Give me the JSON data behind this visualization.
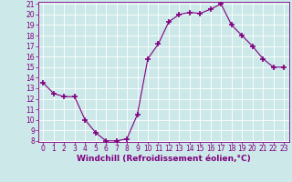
{
  "x": [
    0,
    1,
    2,
    3,
    4,
    5,
    6,
    7,
    8,
    9,
    10,
    11,
    12,
    13,
    14,
    15,
    16,
    17,
    18,
    19,
    20,
    21,
    22,
    23
  ],
  "y": [
    13.5,
    12.5,
    12.2,
    12.2,
    10.0,
    8.8,
    8.0,
    8.0,
    8.2,
    10.5,
    15.8,
    17.2,
    19.3,
    20.0,
    20.2,
    20.1,
    20.5,
    21.0,
    19.0,
    18.0,
    17.0,
    15.8,
    15.0,
    15.0
  ],
  "line_color": "#800080",
  "marker": "+",
  "marker_size": 4,
  "bg_color": "#cce8e8",
  "grid_color": "#ffffff",
  "xlabel": "Windchill (Refroidissement éolien,°C)",
  "xlabel_color": "#800080",
  "tick_color": "#800080",
  "ylim": [
    8,
    21
  ],
  "xlim": [
    -0.5,
    23.5
  ],
  "yticks": [
    8,
    9,
    10,
    11,
    12,
    13,
    14,
    15,
    16,
    17,
    18,
    19,
    20,
    21
  ],
  "xticks": [
    0,
    1,
    2,
    3,
    4,
    5,
    6,
    7,
    8,
    9,
    10,
    11,
    12,
    13,
    14,
    15,
    16,
    17,
    18,
    19,
    20,
    21,
    22,
    23
  ],
  "spine_color": "#800080",
  "label_fontsize": 5.5,
  "tick_fontsize": 5.5,
  "xlabel_fontsize": 6.5
}
